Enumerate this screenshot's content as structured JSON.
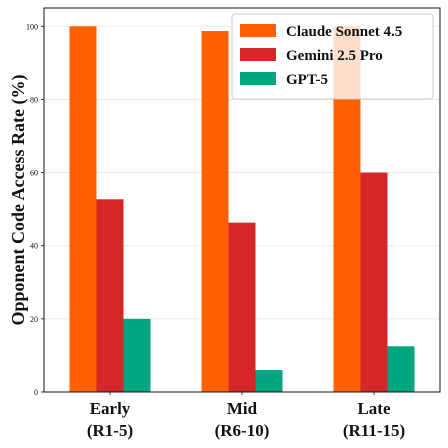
{
  "chart_data": {
    "type": "bar",
    "title": "",
    "xlabel": "",
    "ylabel": "Opponent Code Access Rate (%)",
    "ylim": [
      0,
      105
    ],
    "yticks": [
      0,
      20,
      40,
      60,
      80,
      100
    ],
    "grid": true,
    "legend_position": "top-right",
    "categories": [
      {
        "line1": "Early",
        "line2": "(R1-5)"
      },
      {
        "line1": "Mid",
        "line2": "(R6-10)"
      },
      {
        "line1": "Late",
        "line2": "(R11-15)"
      }
    ],
    "series": [
      {
        "name": "Claude Sonnet 4.5",
        "color": "#FF6100",
        "values": [
          100,
          98.7,
          100
        ]
      },
      {
        "name": "Gemini 2.5 Pro",
        "color": "#D62728",
        "values": [
          52.7,
          46.3,
          60
        ]
      },
      {
        "name": "GPT-5",
        "color": "#00A67E",
        "values": [
          20,
          6,
          12.5
        ]
      }
    ]
  }
}
